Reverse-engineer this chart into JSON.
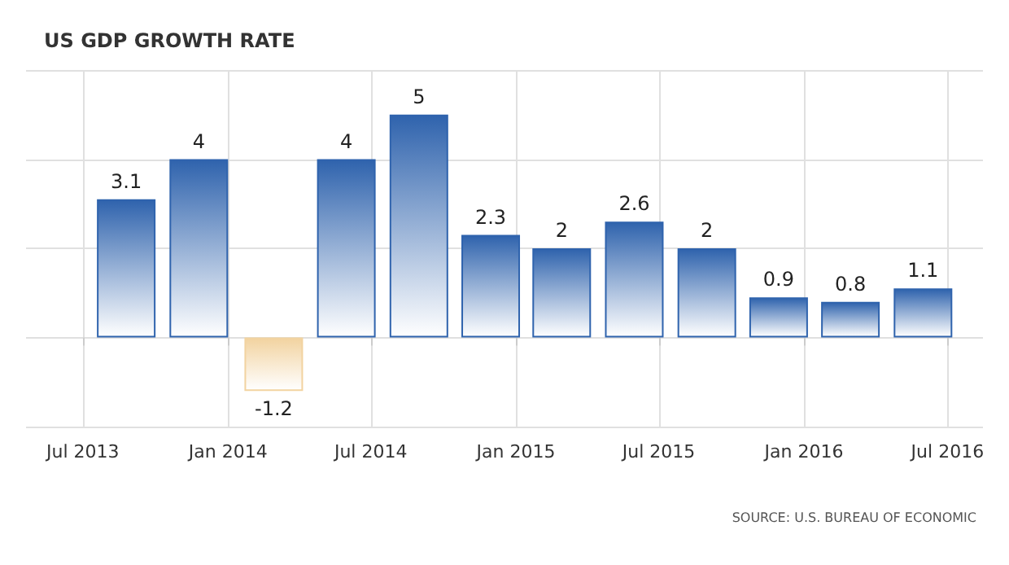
{
  "chart_data": {
    "type": "bar",
    "title": "US GDP GROWTH RATE",
    "x": [
      "2013-08-25",
      "2013-11-25",
      "2014-02-28",
      "2014-05-31",
      "2014-08-31",
      "2014-11-30",
      "2015-02-28",
      "2015-05-31",
      "2015-08-31",
      "2015-11-30",
      "2016-02-29",
      "2016-05-31"
    ],
    "values": [
      3.1,
      4,
      -1.2,
      4,
      5,
      2.3,
      2,
      2.6,
      2,
      0.9,
      0.8,
      1.1
    ],
    "colors": [
      "#2f63ad",
      "#2f63ad",
      "#f2d3a0",
      "#2f63ad",
      "#2f63ad",
      "#2f63ad",
      "#2f63ad",
      "#2f63ad",
      "#2f63ad",
      "#2f63ad",
      "#2f63ad",
      "#2f63ad"
    ],
    "data_labels": true,
    "xlim": [
      "2013-04-20",
      "2016-08-15"
    ],
    "xticks": [
      {
        "value": "2013-07-01",
        "label": "Jul 2013"
      },
      {
        "value": "2014-01-01",
        "label": "Jan 2014"
      },
      {
        "value": "2014-07-01",
        "label": "Jul 2014"
      },
      {
        "value": "2015-01-01",
        "label": "Jan 2015"
      },
      {
        "value": "2015-07-01",
        "label": "Jul 2015"
      },
      {
        "value": "2016-01-01",
        "label": "Jan 2016"
      },
      {
        "value": "2016-07-01",
        "label": "Jul 2016"
      }
    ],
    "ylim": [
      -2,
      6
    ],
    "tick_labels": "x",
    "grid": true,
    "annotations": [
      "SOURCE: U.S. BUREAU OF ECONOMIC"
    ]
  }
}
